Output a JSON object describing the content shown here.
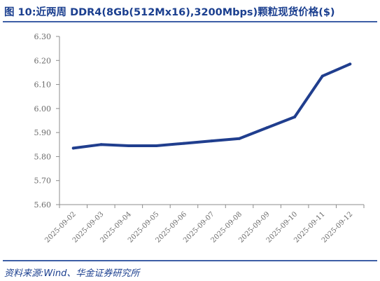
{
  "header": {
    "title": "图 10:近两周 DDR4(8Gb(512Mx16),3200Mbps)颗粒现货价格($)"
  },
  "footer": {
    "source": "资料来源:Wind、华金证券研究所"
  },
  "colors": {
    "series": "#203e8e",
    "text": "#1b3f8f",
    "axis": "#8c8c8c"
  },
  "chart_data": {
    "type": "line",
    "title": "",
    "xlabel": "",
    "ylabel": "",
    "x": [
      "2025-09-02",
      "2025-09-03",
      "2025-09-04",
      "2025-09-05",
      "2025-09-06",
      "2025-09-07",
      "2025-09-08",
      "2025-09-09",
      "2025-09-10",
      "2025-09-11",
      "2025-09-12"
    ],
    "yticks": [
      "5.60",
      "5.70",
      "5.80",
      "5.90",
      "6.00",
      "6.10",
      "6.20",
      "6.30"
    ],
    "ylim": [
      5.6,
      6.3
    ],
    "grid": false,
    "legend": "none",
    "series": [
      {
        "values": [
          5.835,
          5.85,
          5.845,
          5.845,
          5.855,
          5.865,
          5.875,
          5.92,
          5.965,
          6.135,
          6.185
        ]
      }
    ]
  }
}
